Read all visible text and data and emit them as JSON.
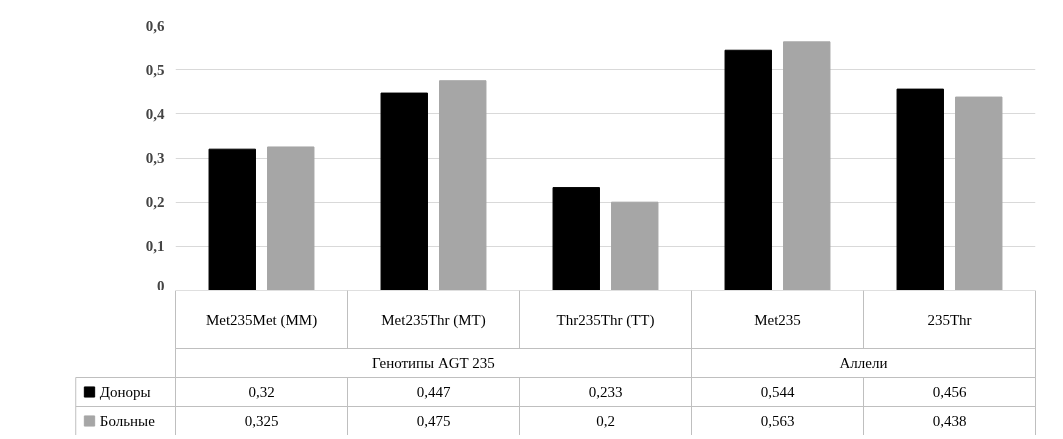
{
  "chart_data": {
    "type": "bar",
    "categories": [
      "Met235Met (MM)",
      "Met235Thr (MT)",
      "Thr235Thr (TT)",
      "Met235",
      "235Thr"
    ],
    "series": [
      {
        "name": "Доноры",
        "color": "#000000",
        "values": [
          0.32,
          0.447,
          0.233,
          0.544,
          0.456
        ],
        "value_labels": [
          "0,32",
          "0,447",
          "0,233",
          "0,544",
          "0,456"
        ]
      },
      {
        "name": "Больные",
        "color": "#a6a6a6",
        "values": [
          0.325,
          0.475,
          0.2,
          0.563,
          0.438
        ],
        "value_labels": [
          "0,325",
          "0,475",
          "0,2",
          "0,563",
          "0,438"
        ]
      }
    ],
    "annotations": [
      "Генотипы AGT 235",
      "Аллели"
    ],
    "ylim": [
      0,
      0.6
    ],
    "yticks": [
      0,
      {
        "value": 0.1,
        "label": "0,1"
      },
      {
        "value": 0.2,
        "label": "0,2"
      },
      {
        "value": 0.3,
        "label": "0,3"
      },
      {
        "value": 0.4,
        "label": "0,4"
      },
      {
        "value": 0.5,
        "label": "0,5"
      },
      {
        "value": 0.6,
        "label": "0,6"
      }
    ],
    "grid": "y",
    "legend": "bottom"
  }
}
